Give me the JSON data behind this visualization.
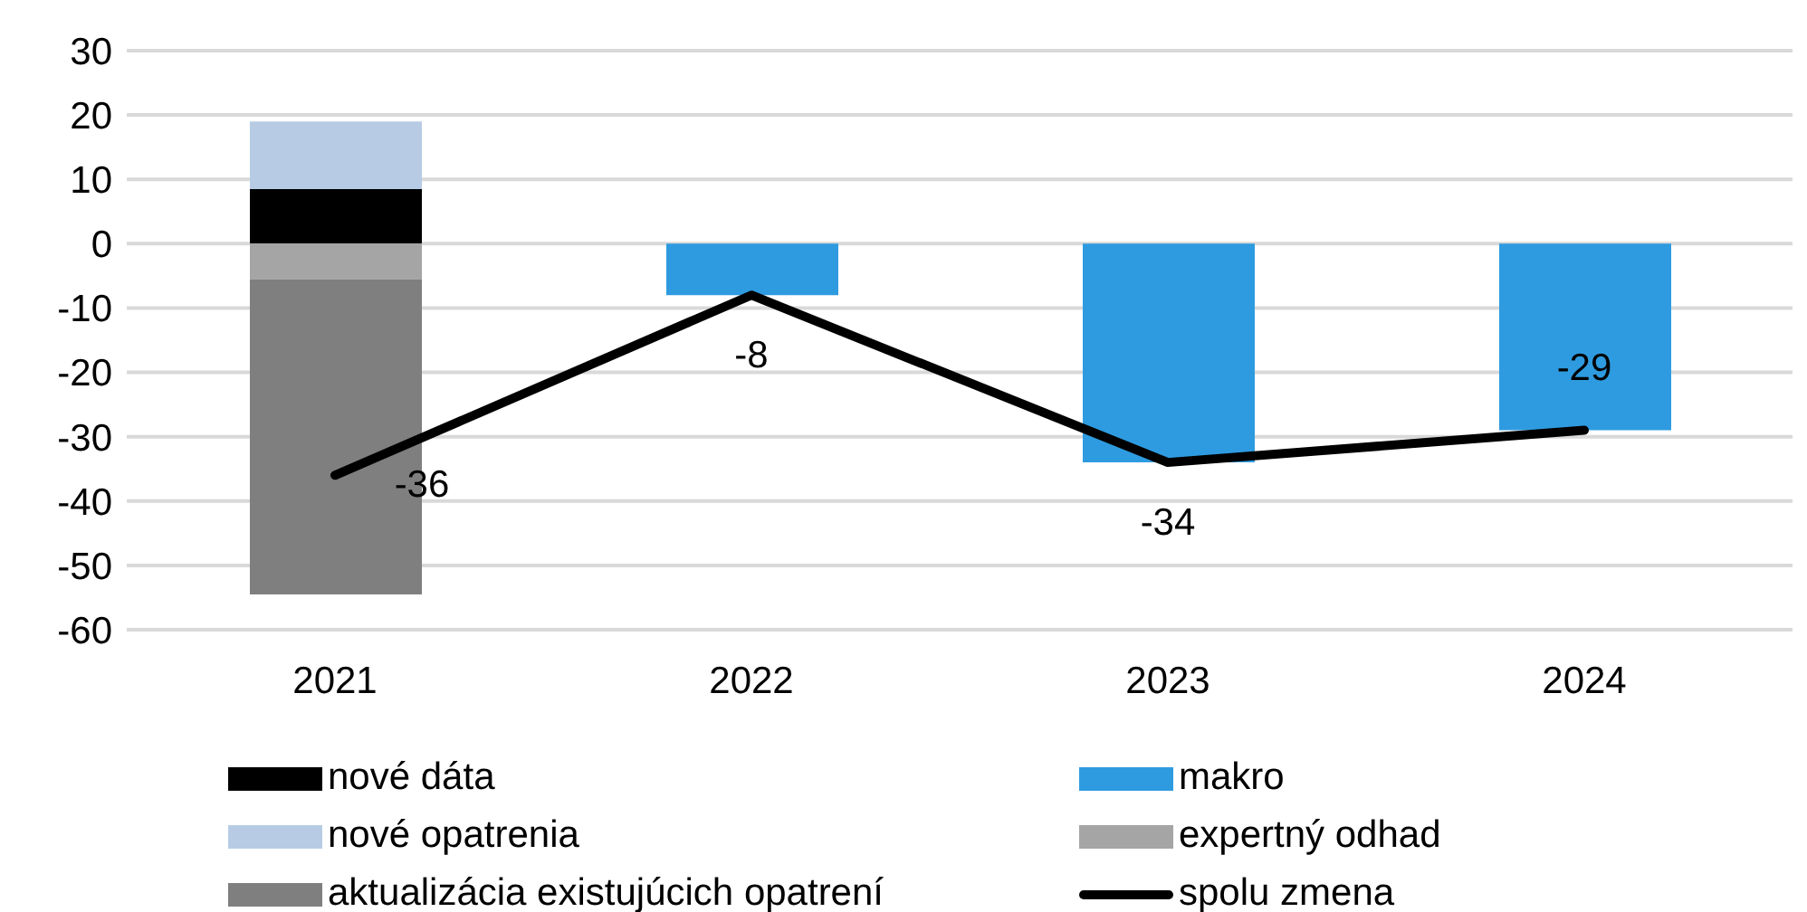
{
  "chart_data": {
    "type": "bar",
    "stacked": true,
    "categories": [
      "2021",
      "2022",
      "2023",
      "2024"
    ],
    "ylim": [
      -60,
      30
    ],
    "yticks": [
      -60,
      -50,
      -40,
      -30,
      -20,
      -10,
      0,
      10,
      20,
      30
    ],
    "grid": "y",
    "legend": "bottom",
    "series": [
      {
        "name": "nové dáta",
        "color": "#000000",
        "values": [
          8.5,
          null,
          null,
          null
        ]
      },
      {
        "name": "makro",
        "color": "#2e9be0",
        "values": [
          null,
          -8,
          -34,
          -29
        ]
      },
      {
        "name": "nové opatrenia",
        "color": "#b7cce4",
        "values": [
          10.5,
          null,
          null,
          null
        ]
      },
      {
        "name": "expertný odhad",
        "color": "#a5a5a5",
        "values": [
          -5.5,
          null,
          null,
          null
        ]
      },
      {
        "name": "aktualizácia existujúcich opatrení",
        "color": "#7f7f7f",
        "values": [
          -49,
          null,
          null,
          null
        ]
      },
      {
        "name": "spolu zmena",
        "type": "line",
        "color": "#000000",
        "marker": "none",
        "values": [
          -36,
          -8,
          -34,
          -29
        ],
        "value_labels": [
          "-36",
          "-8",
          "-34",
          "-29"
        ]
      }
    ]
  }
}
